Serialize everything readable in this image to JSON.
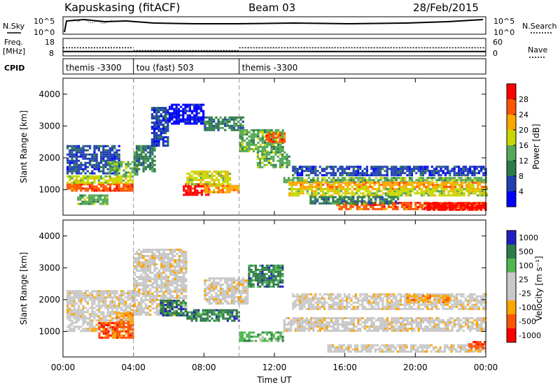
{
  "header": {
    "station": "Kapuskasing (fitACF)",
    "beam": "Beam 03",
    "date": "28/Feb/2015"
  },
  "noise_panel": {
    "left_label": "N.Sky",
    "right_label": "N.Search",
    "y_ticks": [
      "10^5",
      "10^0"
    ]
  },
  "freq_panel": {
    "left_label_top": "Freq.",
    "left_label_bottom": "[MHz]",
    "right_label": "Nave",
    "left_ticks": [
      "18",
      "8"
    ],
    "right_ticks": [
      "60",
      "0"
    ],
    "frequency_mhz": [
      {
        "t_start": 0,
        "t_end": 4,
        "value": 10.5
      },
      {
        "t_start": 4,
        "t_end": 10,
        "value": 10.5
      },
      {
        "t_start": 10,
        "t_end": 24,
        "value": 10.5
      }
    ],
    "nave": [
      {
        "t_start": 0,
        "t_end": 4,
        "value": 28
      },
      {
        "t_start": 4,
        "t_end": 10,
        "value": 18
      },
      {
        "t_start": 10,
        "t_end": 24,
        "value": 28
      }
    ]
  },
  "cpid_panel": {
    "label": "CPID",
    "segments": [
      {
        "t_start": 0,
        "t_end": 4,
        "text": "themis -3300"
      },
      {
        "t_start": 4,
        "t_end": 10,
        "text": "tou (fast) 503"
      },
      {
        "t_start": 10,
        "t_end": 24,
        "text": "themis -3300"
      }
    ]
  },
  "colors": {
    "power": [
      "#0000ff",
      "#2040b0",
      "#2e7a4a",
      "#55a855",
      "#c8d800",
      "#ffa500",
      "#ff5500",
      "#ff0000"
    ],
    "velocity": [
      "#ff0000",
      "#ff5500",
      "#ffa500",
      "#c8c8c8",
      "#c8c8c8",
      "#4fb84f",
      "#2e7a4a",
      "#2020c0"
    ],
    "ground_scatter": "#c8c8c8"
  },
  "chart_data": [
    {
      "type": "heatmap",
      "title": "",
      "xlabel": "",
      "ylabel": "Slant Range [km]",
      "x_unit": "hours UT",
      "xlim": [
        0,
        24
      ],
      "ylim": [
        200,
        4500
      ],
      "x_ticks": [
        0,
        4,
        8,
        12,
        16,
        20,
        24
      ],
      "y_ticks": [
        1000,
        2000,
        3000,
        4000
      ],
      "colorbar": {
        "label": "Power [dB]",
        "range": [
          0,
          32
        ],
        "ticks": [
          4,
          8,
          12,
          16,
          20,
          24,
          28
        ]
      },
      "regions": [
        {
          "t": [
            0.2,
            4.0
          ],
          "r": [
            950,
            1200
          ],
          "level": 6
        },
        {
          "t": [
            0.2,
            4.0
          ],
          "r": [
            1200,
            1450
          ],
          "level": 4
        },
        {
          "t": [
            0.2,
            3.2
          ],
          "r": [
            1500,
            2400
          ],
          "level": 1
        },
        {
          "t": [
            2.5,
            4.2
          ],
          "r": [
            1500,
            1900
          ],
          "level": 3
        },
        {
          "t": [
            0.8,
            2.5
          ],
          "r": [
            550,
            850
          ],
          "level": 3
        },
        {
          "t": [
            4.0,
            5.2
          ],
          "r": [
            1600,
            2400
          ],
          "level": 2
        },
        {
          "t": [
            5.0,
            6.0
          ],
          "r": [
            2400,
            3600
          ],
          "level": 1
        },
        {
          "t": [
            6.0,
            8.0
          ],
          "r": [
            3100,
            3700
          ],
          "level": 0
        },
        {
          "t": [
            6.8,
            8.2
          ],
          "r": [
            850,
            1200
          ],
          "level": 7
        },
        {
          "t": [
            7.0,
            9.5
          ],
          "r": [
            1200,
            1600
          ],
          "level": 4
        },
        {
          "t": [
            8.0,
            10.0
          ],
          "r": [
            950,
            1150
          ],
          "level": 5
        },
        {
          "t": [
            8.0,
            10.2
          ],
          "r": [
            2900,
            3300
          ],
          "level": 2
        },
        {
          "t": [
            10.0,
            12.5
          ],
          "r": [
            2200,
            2900
          ],
          "level": 3
        },
        {
          "t": [
            11.5,
            12.6
          ],
          "r": [
            2500,
            2800
          ],
          "level": 6
        },
        {
          "t": [
            11.0,
            12.8
          ],
          "r": [
            1700,
            2200
          ],
          "level": 3
        },
        {
          "t": [
            12.5,
            24
          ],
          "r": [
            1250,
            1400
          ],
          "level": 3
        },
        {
          "t": [
            12.8,
            24
          ],
          "r": [
            1050,
            1250
          ],
          "level": 5
        },
        {
          "t": [
            12.8,
            24
          ],
          "r": [
            850,
            1050
          ],
          "level": 4
        },
        {
          "t": [
            13.0,
            24
          ],
          "r": [
            1450,
            1750
          ],
          "level": 1
        },
        {
          "t": [
            15.5,
            24
          ],
          "r": [
            420,
            620
          ],
          "level": 6
        },
        {
          "t": [
            20.5,
            24
          ],
          "r": [
            350,
            600
          ],
          "level": 7
        },
        {
          "t": [
            14.0,
            19.0
          ],
          "r": [
            600,
            800
          ],
          "level": 2
        }
      ]
    },
    {
      "type": "heatmap",
      "title": "",
      "xlabel": "Time UT",
      "ylabel": "Slant Range [km]",
      "x_unit": "hours UT",
      "xlim": [
        0,
        24
      ],
      "ylim": [
        200,
        4500
      ],
      "x_ticks": [
        0,
        4,
        8,
        12,
        16,
        20,
        24
      ],
      "x_tick_labels": [
        "00:00",
        "04:00",
        "08:00",
        "12:00",
        "16:00",
        "20:00",
        "00:00"
      ],
      "y_ticks": [
        1000,
        2000,
        3000,
        4000
      ],
      "colorbar": {
        "label": "Velocity [m s⁻¹]",
        "tick_labels": [
          "1000",
          "500",
          "100",
          "25",
          "-25",
          "-100",
          "-500",
          "-1000"
        ]
      },
      "regions": [
        {
          "t": [
            0.2,
            4.0
          ],
          "r": [
            1000,
            2300
          ],
          "level": 3
        },
        {
          "t": [
            2.0,
            4.0
          ],
          "r": [
            800,
            1300
          ],
          "level": 1
        },
        {
          "t": [
            3.0,
            4.0
          ],
          "r": [
            1300,
            1600
          ],
          "level": 2
        },
        {
          "t": [
            4.0,
            7.0
          ],
          "r": [
            1500,
            3600
          ],
          "level": 3
        },
        {
          "t": [
            5.5,
            7.0
          ],
          "r": [
            1500,
            2000
          ],
          "level": 6
        },
        {
          "t": [
            7.0,
            10.0
          ],
          "r": [
            1350,
            1700
          ],
          "level": 6
        },
        {
          "t": [
            8.0,
            10.5
          ],
          "r": [
            1900,
            2700
          ],
          "level": 3
        },
        {
          "t": [
            10.0,
            12.5
          ],
          "r": [
            700,
            1000
          ],
          "level": 5
        },
        {
          "t": [
            10.5,
            12.5
          ],
          "r": [
            2400,
            3100
          ],
          "level": 6
        },
        {
          "t": [
            12.5,
            24
          ],
          "r": [
            1000,
            1450
          ],
          "level": 3
        },
        {
          "t": [
            13.0,
            24
          ],
          "r": [
            1700,
            2200
          ],
          "level": 3
        },
        {
          "t": [
            15.0,
            24
          ],
          "r": [
            400,
            600
          ],
          "level": 3
        },
        {
          "t": [
            23.0,
            24
          ],
          "r": [
            400,
            700
          ],
          "level": 1
        },
        {
          "t": [
            19.5,
            22.0
          ],
          "r": [
            1950,
            2150
          ],
          "level": 2
        }
      ]
    }
  ]
}
